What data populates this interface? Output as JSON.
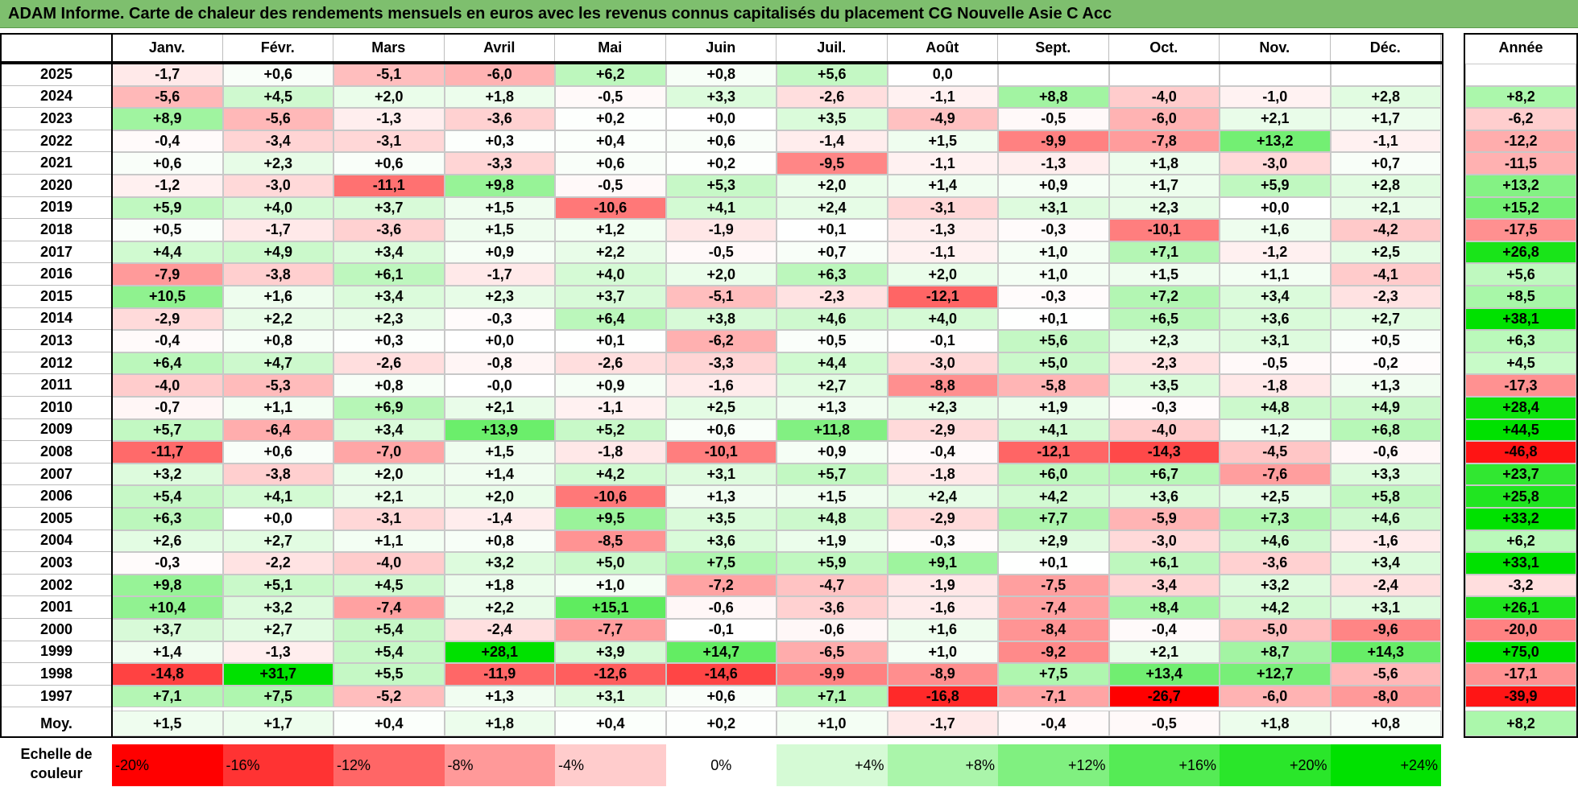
{
  "title": "ADAM Informe. Carte de chaleur des rendements mensuels en euros avec les revenus connus capitalisés du placement CG Nouvelle Asie C Acc",
  "colors": {
    "title_bg": "#7ebf6e",
    "negative": "#ff0000",
    "positive": "#00e000",
    "neutral": "#ffffff"
  },
  "chart_data": {
    "type": "heatmap",
    "title": "ADAM Informe. Carte de chaleur des rendements mensuels en euros avec les revenus connus capitalisés du placement CG Nouvelle Asie C Acc",
    "months": [
      "Janv.",
      "Févr.",
      "Mars",
      "Avril",
      "Mai",
      "Juin",
      "Juil.",
      "Août",
      "Sept.",
      "Oct.",
      "Nov.",
      "Déc."
    ],
    "year_header": "Année",
    "rows": [
      {
        "year": "2025",
        "values": [
          "-1,7",
          "+0,6",
          "-5,1",
          "-6,0",
          "+6,2",
          "+0,8",
          "+5,6",
          "0,0",
          "",
          "",
          "",
          ""
        ],
        "annual": ""
      },
      {
        "year": "2024",
        "values": [
          "-5,6",
          "+4,5",
          "+2,0",
          "+1,8",
          "-0,5",
          "+3,3",
          "-2,6",
          "-1,1",
          "+8,8",
          "-4,0",
          "-1,0",
          "+2,8"
        ],
        "annual": "+8,2"
      },
      {
        "year": "2023",
        "values": [
          "+8,9",
          "-5,6",
          "-1,3",
          "-3,6",
          "+0,2",
          "+0,0",
          "+3,5",
          "-4,9",
          "-0,5",
          "-6,0",
          "+2,1",
          "+1,7"
        ],
        "annual": "-6,2"
      },
      {
        "year": "2022",
        "values": [
          "-0,4",
          "-3,4",
          "-3,1",
          "+0,3",
          "+0,4",
          "+0,6",
          "-1,4",
          "+1,5",
          "-9,9",
          "-7,8",
          "+13,2",
          "-1,1"
        ],
        "annual": "-12,2"
      },
      {
        "year": "2021",
        "values": [
          "+0,6",
          "+2,3",
          "+0,6",
          "-3,3",
          "+0,6",
          "+0,2",
          "-9,5",
          "-1,1",
          "-1,3",
          "+1,8",
          "-3,0",
          "+0,7"
        ],
        "annual": "-11,5"
      },
      {
        "year": "2020",
        "values": [
          "-1,2",
          "-3,0",
          "-11,1",
          "+9,8",
          "-0,5",
          "+5,3",
          "+2,0",
          "+1,4",
          "+0,9",
          "+1,7",
          "+5,9",
          "+2,8"
        ],
        "annual": "+13,2"
      },
      {
        "year": "2019",
        "values": [
          "+5,9",
          "+4,0",
          "+3,7",
          "+1,5",
          "-10,6",
          "+4,1",
          "+2,4",
          "-3,1",
          "+3,1",
          "+2,3",
          "+0,0",
          "+2,1"
        ],
        "annual": "+15,2"
      },
      {
        "year": "2018",
        "values": [
          "+0,5",
          "-1,7",
          "-3,6",
          "+1,5",
          "+1,2",
          "-1,9",
          "+0,1",
          "-1,3",
          "-0,3",
          "-10,1",
          "+1,6",
          "-4,2"
        ],
        "annual": "-17,5"
      },
      {
        "year": "2017",
        "values": [
          "+4,4",
          "+4,9",
          "+3,4",
          "+0,9",
          "+2,2",
          "-0,5",
          "+0,7",
          "-1,1",
          "+1,0",
          "+7,1",
          "-1,2",
          "+2,5"
        ],
        "annual": "+26,8"
      },
      {
        "year": "2016",
        "values": [
          "-7,9",
          "-3,8",
          "+6,1",
          "-1,7",
          "+4,0",
          "+2,0",
          "+6,3",
          "+2,0",
          "+1,0",
          "+1,5",
          "+1,1",
          "-4,1"
        ],
        "annual": "+5,6"
      },
      {
        "year": "2015",
        "values": [
          "+10,5",
          "+1,6",
          "+3,4",
          "+2,3",
          "+3,7",
          "-5,1",
          "-2,3",
          "-12,1",
          "-0,3",
          "+7,2",
          "+3,4",
          "-2,3"
        ],
        "annual": "+8,5"
      },
      {
        "year": "2014",
        "values": [
          "-2,9",
          "+2,2",
          "+2,3",
          "-0,3",
          "+6,4",
          "+3,8",
          "+4,6",
          "+4,0",
          "+0,1",
          "+6,5",
          "+3,6",
          "+2,7"
        ],
        "annual": "+38,1"
      },
      {
        "year": "2013",
        "values": [
          "-0,4",
          "+0,8",
          "+0,3",
          "+0,0",
          "+0,1",
          "-6,2",
          "+0,5",
          "-0,1",
          "+5,6",
          "+2,3",
          "+3,1",
          "+0,5"
        ],
        "annual": "+6,3"
      },
      {
        "year": "2012",
        "values": [
          "+6,4",
          "+4,7",
          "-2,6",
          "-0,8",
          "-2,6",
          "-3,3",
          "+4,4",
          "-3,0",
          "+5,0",
          "-2,3",
          "-0,5",
          "-0,2"
        ],
        "annual": "+4,5"
      },
      {
        "year": "2011",
        "values": [
          "-4,0",
          "-5,3",
          "+0,8",
          "-0,0",
          "+0,9",
          "-1,6",
          "+2,7",
          "-8,8",
          "-5,8",
          "+3,5",
          "-1,8",
          "+1,3"
        ],
        "annual": "-17,3"
      },
      {
        "year": "2010",
        "values": [
          "-0,7",
          "+1,1",
          "+6,9",
          "+2,1",
          "-1,1",
          "+2,5",
          "+1,3",
          "+2,3",
          "+1,9",
          "-0,3",
          "+4,8",
          "+4,9"
        ],
        "annual": "+28,4"
      },
      {
        "year": "2009",
        "values": [
          "+5,7",
          "-6,4",
          "+3,4",
          "+13,9",
          "+5,2",
          "+0,6",
          "+11,8",
          "-2,9",
          "+4,1",
          "-4,0",
          "+1,2",
          "+6,8"
        ],
        "annual": "+44,5"
      },
      {
        "year": "2008",
        "values": [
          "-11,7",
          "+0,6",
          "-7,0",
          "+1,5",
          "-1,8",
          "-10,1",
          "+0,9",
          "-0,4",
          "-12,1",
          "-14,3",
          "-4,5",
          "-0,6"
        ],
        "annual": "-46,8"
      },
      {
        "year": "2007",
        "values": [
          "+3,2",
          "-3,8",
          "+2,0",
          "+1,4",
          "+4,2",
          "+3,1",
          "+5,7",
          "-1,8",
          "+6,0",
          "+6,7",
          "-7,6",
          "+3,3"
        ],
        "annual": "+23,7"
      },
      {
        "year": "2006",
        "values": [
          "+5,4",
          "+4,1",
          "+2,1",
          "+2,0",
          "-10,6",
          "+1,3",
          "+1,5",
          "+2,4",
          "+4,2",
          "+3,6",
          "+2,5",
          "+5,8"
        ],
        "annual": "+25,8"
      },
      {
        "year": "2005",
        "values": [
          "+6,3",
          "+0,0",
          "-3,1",
          "-1,4",
          "+9,5",
          "+3,5",
          "+4,8",
          "-2,9",
          "+7,7",
          "-5,9",
          "+7,3",
          "+4,6"
        ],
        "annual": "+33,2"
      },
      {
        "year": "2004",
        "values": [
          "+2,6",
          "+2,7",
          "+1,1",
          "+0,8",
          "-8,5",
          "+3,6",
          "+1,9",
          "-0,3",
          "+2,9",
          "-3,0",
          "+4,6",
          "-1,6"
        ],
        "annual": "+6,2"
      },
      {
        "year": "2003",
        "values": [
          "-0,3",
          "-2,2",
          "-4,0",
          "+3,2",
          "+5,0",
          "+7,5",
          "+5,9",
          "+9,1",
          "+0,1",
          "+6,1",
          "-3,6",
          "+3,4"
        ],
        "annual": "+33,1"
      },
      {
        "year": "2002",
        "values": [
          "+9,8",
          "+5,1",
          "+4,5",
          "+1,8",
          "+1,0",
          "-7,2",
          "-4,7",
          "-1,9",
          "-7,5",
          "-3,4",
          "+3,2",
          "-2,4"
        ],
        "annual": "-3,2"
      },
      {
        "year": "2001",
        "values": [
          "+10,4",
          "+3,2",
          "-7,4",
          "+2,2",
          "+15,1",
          "-0,6",
          "-3,6",
          "-1,6",
          "-7,4",
          "+8,4",
          "+4,2",
          "+3,1"
        ],
        "annual": "+26,1"
      },
      {
        "year": "2000",
        "values": [
          "+3,7",
          "+2,7",
          "+5,4",
          "-2,4",
          "-7,7",
          "-0,1",
          "-0,6",
          "+1,6",
          "-8,4",
          "-0,4",
          "-5,0",
          "-9,6"
        ],
        "annual": "-20,0"
      },
      {
        "year": "1999",
        "values": [
          "+1,4",
          "-1,3",
          "+5,4",
          "+28,1",
          "+3,9",
          "+14,7",
          "-6,5",
          "+1,0",
          "-9,2",
          "+2,1",
          "+8,7",
          "+14,3"
        ],
        "annual": "+75,0"
      },
      {
        "year": "1998",
        "values": [
          "-14,8",
          "+31,7",
          "+5,5",
          "-11,9",
          "-12,6",
          "-14,6",
          "-9,9",
          "-8,9",
          "+7,5",
          "+13,4",
          "+12,7",
          "-5,6"
        ],
        "annual": "-17,1"
      },
      {
        "year": "1997",
        "values": [
          "+7,1",
          "+7,5",
          "-5,2",
          "+1,3",
          "+3,1",
          "+0,6",
          "+7,1",
          "-16,8",
          "-7,1",
          "-26,7",
          "-6,0",
          "-8,0"
        ],
        "annual": "-39,9"
      }
    ],
    "average": {
      "label": "Moy.",
      "values": [
        "+1,5",
        "+1,7",
        "+0,4",
        "+1,8",
        "+0,4",
        "+0,2",
        "+1,0",
        "-1,7",
        "-0,4",
        "-0,5",
        "+1,8",
        "+0,8"
      ],
      "annual": "+8,2"
    },
    "scale": {
      "label": "Echelle de couleur",
      "steps": [
        {
          "label": "-20%",
          "value": -20
        },
        {
          "label": "-16%",
          "value": -16
        },
        {
          "label": "-12%",
          "value": -12
        },
        {
          "label": "-8%",
          "value": -8
        },
        {
          "label": "-4%",
          "value": -4
        },
        {
          "label": "0%",
          "value": 0
        },
        {
          "label": "+4%",
          "value": 4
        },
        {
          "label": "+8%",
          "value": 8
        },
        {
          "label": "+12%",
          "value": 12
        },
        {
          "label": "+16%",
          "value": 16
        },
        {
          "label": "+20%",
          "value": 20
        },
        {
          "label": "+24%",
          "value": 24
        }
      ]
    }
  }
}
